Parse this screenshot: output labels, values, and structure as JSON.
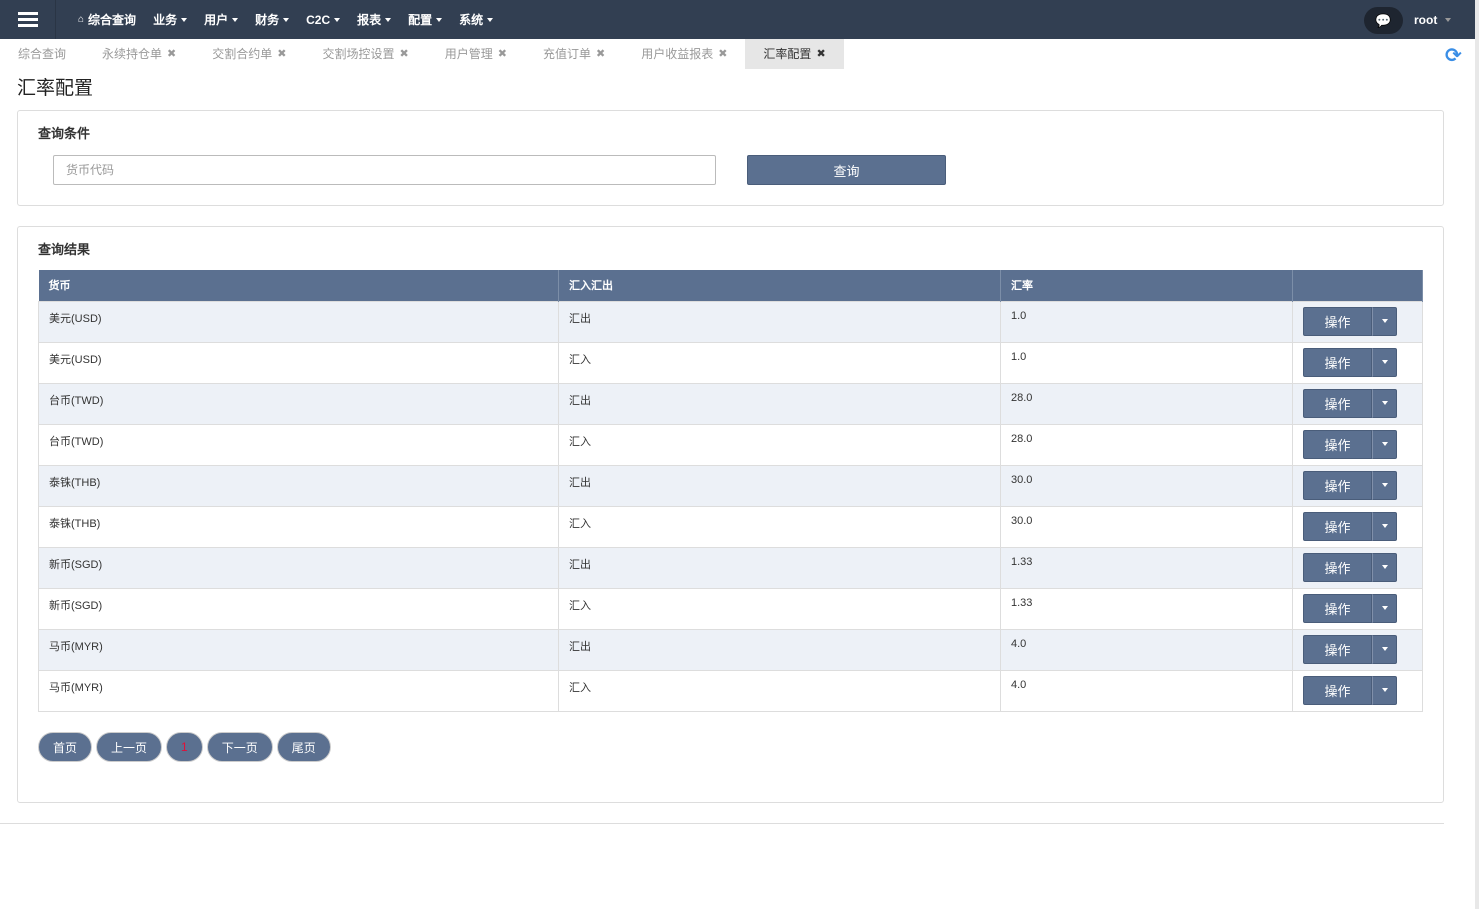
{
  "nav": {
    "menu": [
      {
        "label": "综合查询",
        "icon": "home-icon"
      },
      {
        "label": "业务",
        "dropdown": true
      },
      {
        "label": "用户",
        "dropdown": true
      },
      {
        "label": "财务",
        "dropdown": true
      },
      {
        "label": "C2C",
        "dropdown": true
      },
      {
        "label": "报表",
        "dropdown": true
      },
      {
        "label": "配置",
        "dropdown": true
      },
      {
        "label": "系统",
        "dropdown": true
      }
    ],
    "user": "root"
  },
  "tabs": [
    {
      "label": "综合查询",
      "closable": false
    },
    {
      "label": "永续持仓单",
      "closable": true
    },
    {
      "label": "交割合约单",
      "closable": true
    },
    {
      "label": "交割场控设置",
      "closable": true
    },
    {
      "label": "用户管理",
      "closable": true
    },
    {
      "label": "充值订单",
      "closable": true
    },
    {
      "label": "用户收益报表",
      "closable": true
    },
    {
      "label": "汇率配置",
      "closable": true,
      "active": true
    }
  ],
  "close_glyph": "✖",
  "page_title": "汇率配置",
  "query": {
    "title": "查询条件",
    "placeholder": "货币代码",
    "value": "",
    "button": "查询"
  },
  "results": {
    "title": "查询结果",
    "columns": [
      "货币",
      "汇入汇出",
      "汇率",
      ""
    ],
    "rows": [
      [
        "美元(USD)",
        "汇出",
        "1.0"
      ],
      [
        "美元(USD)",
        "汇入",
        "1.0"
      ],
      [
        "台币(TWD)",
        "汇出",
        "28.0"
      ],
      [
        "台币(TWD)",
        "汇入",
        "28.0"
      ],
      [
        "泰铢(THB)",
        "汇出",
        "30.0"
      ],
      [
        "泰铢(THB)",
        "汇入",
        "30.0"
      ],
      [
        "新币(SGD)",
        "汇出",
        "1.33"
      ],
      [
        "新币(SGD)",
        "汇入",
        "1.33"
      ],
      [
        "马币(MYR)",
        "汇出",
        "4.0"
      ],
      [
        "马币(MYR)",
        "汇入",
        "4.0"
      ]
    ],
    "action_label": "操作"
  },
  "pager": {
    "first": "首页",
    "prev": "上一页",
    "current": "1",
    "next": "下一页",
    "last": "尾页"
  },
  "colors": {
    "navbar": "#323f52",
    "accent": "#5b7090",
    "current_page": "#e0103a",
    "refresh": "#3a8ee6"
  }
}
